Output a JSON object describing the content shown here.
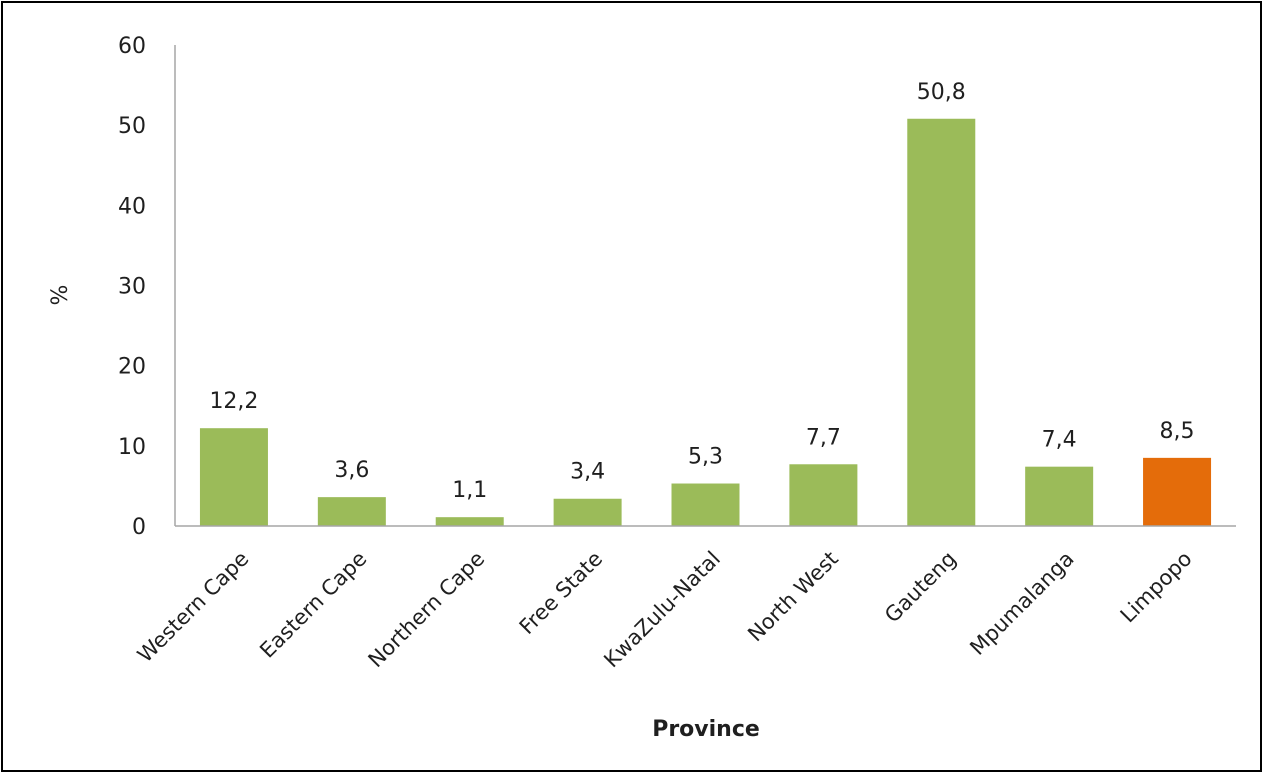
{
  "chart_data": {
    "type": "bar",
    "categories": [
      "Western Cape",
      "Eastern Cape",
      "Northern Cape",
      "Free State",
      "KwaZulu-Natal",
      "North West",
      "Gauteng",
      "Mpumalanga",
      "Limpopo"
    ],
    "values": [
      12.2,
      3.6,
      1.1,
      3.4,
      5.3,
      7.7,
      50.8,
      7.4,
      8.5
    ],
    "data_labels": [
      "12,2",
      "3,6",
      "1,1",
      "3,4",
      "5,3",
      "7,7",
      "50,8",
      "7,4",
      "8,5"
    ],
    "title": "",
    "xlabel": "Province",
    "ylabel": "%",
    "ylim": [
      0,
      60
    ],
    "yticks": [
      0,
      10,
      20,
      30,
      40,
      50,
      60
    ],
    "grid": false,
    "legend": "none",
    "colors": {
      "default_bar": "#9bbb59",
      "highlight_bar": "#e46c0a",
      "axis": "#a6a6a6",
      "text": "#1f1f1f",
      "border": "#000000"
    },
    "highlight_category": "Limpopo"
  }
}
